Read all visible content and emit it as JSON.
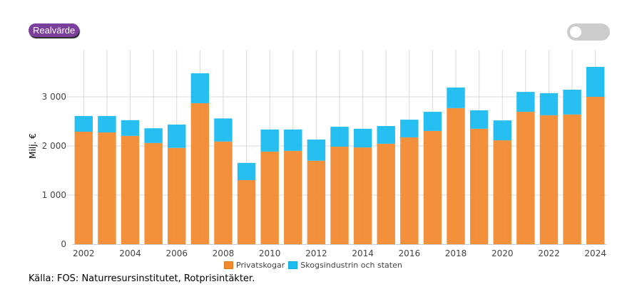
{
  "controls": {
    "realvarde_label": "Realvärde",
    "toggle_state": "off"
  },
  "source_text": "Källa: FOS: Naturresursinstitutet, Rotprisintäkter.",
  "colors": {
    "privatskogar": "#f28a30",
    "skogsindustrin": "#1bbcf0",
    "button": "#7a3f9d",
    "toggle": "#cccccc",
    "grid": "#d9d9d9"
  },
  "chart_data": {
    "type": "bar",
    "stacked": true,
    "title": "",
    "xlabel": "",
    "ylabel": "Milj. €",
    "ylim": [
      0,
      3800
    ],
    "yticks": [
      0,
      1000,
      2000,
      3000
    ],
    "ytick_labels": [
      "0",
      "1 000",
      "2 000",
      "3 000"
    ],
    "xtick_labels": [
      "2002",
      "2004",
      "2006",
      "2008",
      "2010",
      "2012",
      "2014",
      "2016",
      "2018",
      "2020",
      "2022",
      "2024"
    ],
    "grid": true,
    "legend_position": "bottom",
    "categories": [
      "2002",
      "2003",
      "2004",
      "2005",
      "2006",
      "2007",
      "2008",
      "2009",
      "2010",
      "2011",
      "2012",
      "2013",
      "2014",
      "2015",
      "2016",
      "2017",
      "2018",
      "2019",
      "2020",
      "2021",
      "2022",
      "2023",
      "2024"
    ],
    "series": [
      {
        "name": "Privatskogar",
        "values": [
          2290,
          2275,
          2205,
          2060,
          1960,
          2870,
          2090,
          1305,
          1885,
          1900,
          1700,
          1985,
          1970,
          2045,
          2175,
          2305,
          2770,
          2350,
          2115,
          2695,
          2625,
          2640,
          3000
        ]
      },
      {
        "name": "Skogsindustrin och staten",
        "values": [
          320,
          335,
          320,
          300,
          475,
          610,
          470,
          350,
          450,
          435,
          430,
          405,
          380,
          360,
          360,
          390,
          420,
          375,
          405,
          405,
          450,
          505,
          610
        ]
      }
    ]
  }
}
